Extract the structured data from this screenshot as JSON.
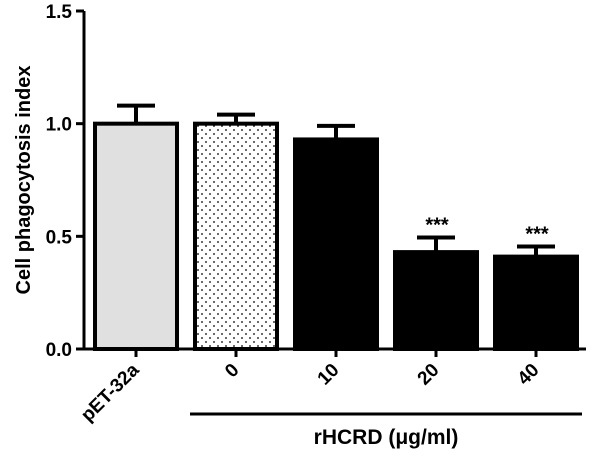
{
  "chart_data": {
    "type": "bar",
    "title": "",
    "ylabel": "Cell phagocytosis index",
    "xlabel": "rHCRD (μg/ml)",
    "ylim": [
      0,
      1.5
    ],
    "yticks": [
      {
        "value": 0,
        "label": "0.0"
      },
      {
        "value": 0.5,
        "label": "0.5"
      },
      {
        "value": 1.0,
        "label": "1.0"
      },
      {
        "value": 1.5,
        "label": "1.5"
      }
    ],
    "categories": [
      "pET-32a",
      "0",
      "10",
      "20",
      "40"
    ],
    "values": [
      1.0,
      1.0,
      0.93,
      0.43,
      0.41
    ],
    "errors": [
      0.08,
      0.04,
      0.06,
      0.065,
      0.045
    ],
    "annotations": [
      "",
      "",
      "",
      "***",
      "***"
    ],
    "bar_styles": [
      "light-gray",
      "dotted",
      "black",
      "black",
      "black"
    ],
    "colors": {
      "light": "#e0e0e0",
      "dotted_bg": "#ffffff",
      "dark": "#000000"
    },
    "grid": false,
    "xlabel_spans_categories": [
      "0",
      "10",
      "20",
      "40"
    ]
  }
}
